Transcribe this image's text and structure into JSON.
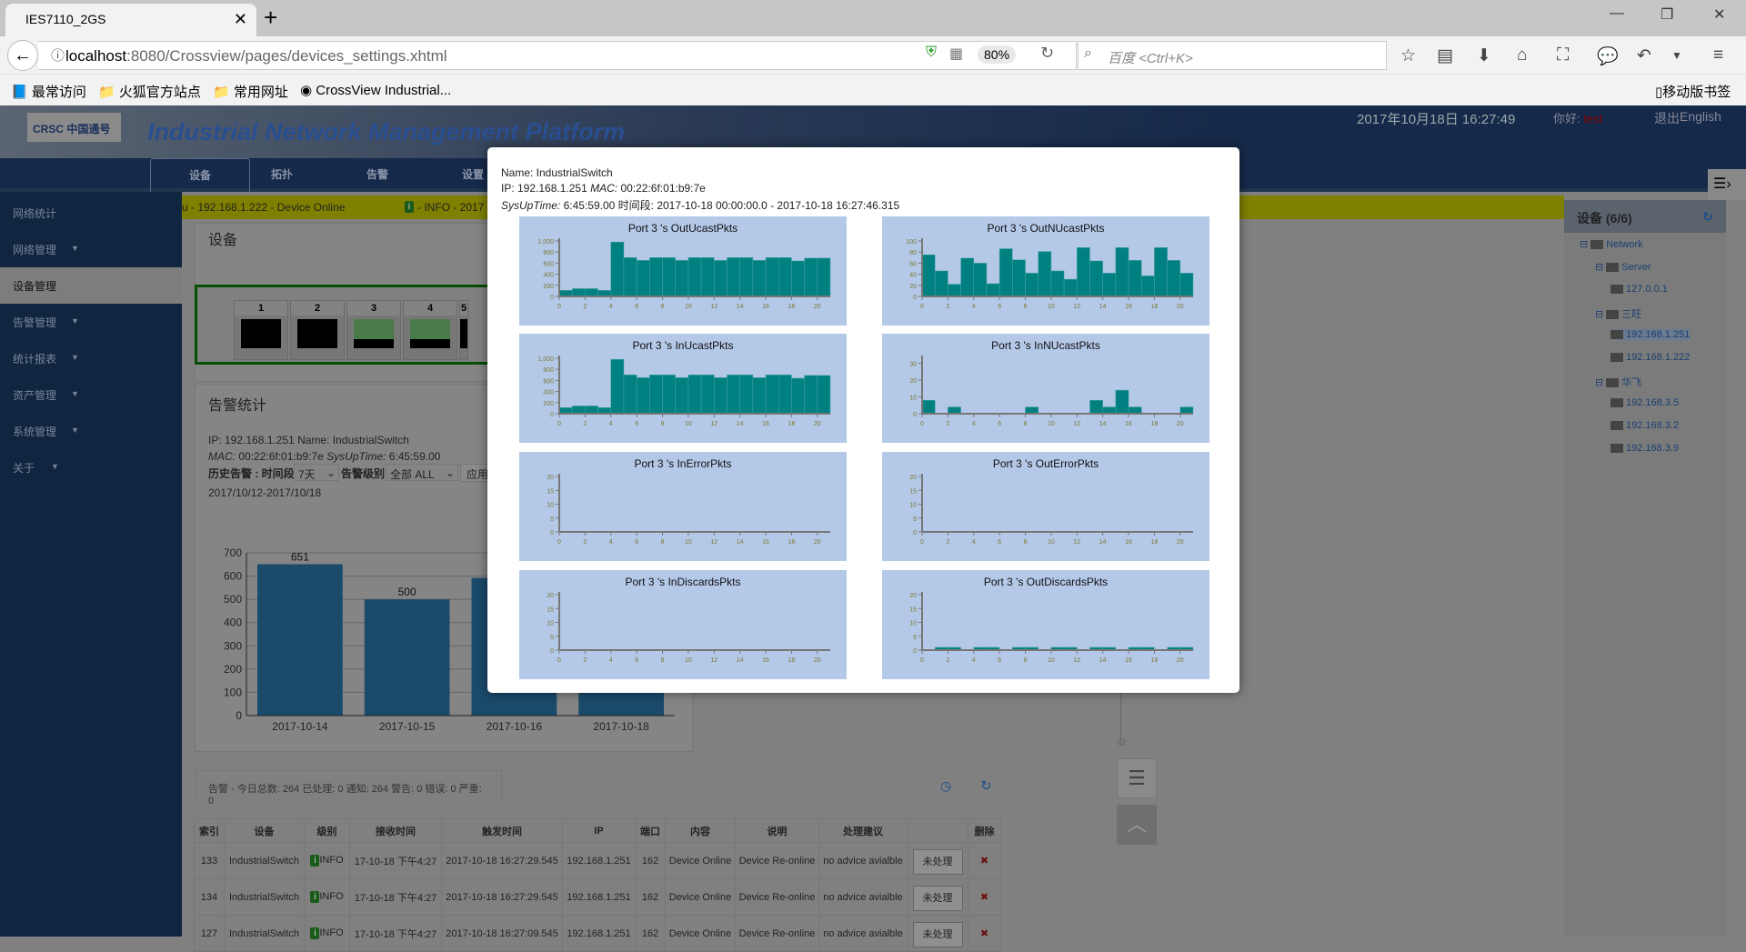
{
  "browser": {
    "tab_title": "IES7110_2GS",
    "url_host": "localhost",
    "url_path": ":8080/Crossview/pages/devices_settings.xhtml",
    "zoom": "80%",
    "search_placeholder": "百度 <Ctrl+K>",
    "bookmarks": [
      "最常访问",
      "火狐官方站点",
      "常用网址",
      "CrossView Industrial..."
    ],
    "mobile_bookmarks": "移动版书签"
  },
  "header": {
    "logo": "CRSC 中国通号",
    "title": "Industrial Network Management Platform",
    "datetime": "2017年10月18日 16:27:49",
    "hello": "你好:",
    "user": "test",
    "logout": "退出",
    "lang": "English"
  },
  "nav": [
    "设备",
    "拓扑",
    "告警",
    "设置"
  ],
  "sidebar": [
    {
      "label": "网络统计",
      "caret": false
    },
    {
      "label": "网络管理",
      "caret": true
    },
    {
      "label": "设备管理",
      "caret": false,
      "active": true
    },
    {
      "label": "告警管理",
      "caret": true
    },
    {
      "label": "统计报表",
      "caret": true
    },
    {
      "label": "资产管理",
      "caret": true
    },
    {
      "label": "系统管理",
      "caret": true
    },
    {
      "label": "关于",
      "caret": true
    }
  ],
  "ticker": {
    "text1": "u - 192.168.1.222 - Device Online",
    "badge": "i",
    "text2": "- INFO - 2017"
  },
  "device_panel": {
    "title": "设备",
    "ports": [
      {
        "n": "1",
        "up": false
      },
      {
        "n": "2",
        "up": false
      },
      {
        "n": "3",
        "up": true
      },
      {
        "n": "4",
        "up": true
      },
      {
        "n": "5",
        "up": false
      }
    ]
  },
  "alarm_panel": {
    "title": "告警统计",
    "line1": "IP: 192.168.1.251 Name: IndustrialSwitch",
    "mac_label": "MAC:",
    "mac": "00:22:6f:01:b9:7e",
    "uptime_label": "SysUpTime:",
    "uptime": "6:45:59.00",
    "history_label": "历史告警 : 时间段",
    "period": "7天",
    "level_label": "告警级别",
    "level": "全部 ALL",
    "apply": "应用",
    "range": "2017/10/12-2017/10/18"
  },
  "alarm_summary": "告警 - 今日总数: 264 已处理: 0 通知: 264 警告: 0 错误: 0 严重: 0",
  "table": {
    "headers": [
      "索引",
      "设备",
      "级别",
      "接收时间",
      "触发时间",
      "IP",
      "端口",
      "内容",
      "说明",
      "处理建议",
      "",
      "删除"
    ],
    "rows": [
      [
        "133",
        "IndustrialSwitch",
        "INFO",
        "17-10-18 下午4:27",
        "2017-10-18 16:27:29.545",
        "192.168.1.251",
        "162",
        "Device Online",
        "Device Re-online",
        "no advice avialble",
        "未处理"
      ],
      [
        "134",
        "IndustrialSwitch",
        "INFO",
        "17-10-18 下午4:27",
        "2017-10-18 16:27:29.545",
        "192.168.1.251",
        "162",
        "Device Online",
        "Device Re-online",
        "no advice avialble",
        "未处理"
      ],
      [
        "127",
        "IndustrialSwitch",
        "INFO",
        "17-10-18 下午4:27",
        "2017-10-18 16:27:09.545",
        "192.168.1.251",
        "162",
        "Device Online",
        "Device Re-online",
        "no advice avialble",
        "未处理"
      ]
    ]
  },
  "right_panel": {
    "title": "设备 (6/6)",
    "tree": [
      {
        "label": "Network",
        "level": 0
      },
      {
        "label": "Server",
        "level": 1
      },
      {
        "label": "127.0.0.1",
        "level": 2
      },
      {
        "label": "三旺",
        "level": 1
      },
      {
        "label": "192.168.1.251",
        "level": 2,
        "selected": true
      },
      {
        "label": "192.168.1.222",
        "level": 2
      },
      {
        "label": "华飞",
        "level": 1
      },
      {
        "label": "192.168.3.5",
        "level": 2
      },
      {
        "label": "192.168.3.2",
        "level": 2
      },
      {
        "label": "192.168.3.9",
        "level": 2
      }
    ]
  },
  "modal": {
    "name": "Name: IndustrialSwitch",
    "ip_line": "IP: 192.168.1.251",
    "mac_label": "MAC:",
    "mac": "00:22:6f:01:b9:7e",
    "uptime_label": "SysUpTime:",
    "uptime_line": "6:45:59.00 时间段: 2017-10-18 00:00:00.0 - 2017-10-18 16:27:46.315"
  },
  "colors": {
    "bar": "#008080",
    "chart_bg": "#b4c8e8",
    "bg_bar": "#1b4a6b"
  },
  "chart_data": [
    {
      "type": "bar",
      "title": "Port 3 's OutUcastPkts",
      "xlim": [
        0,
        21
      ],
      "xticks": [
        0,
        2,
        4,
        6,
        8,
        10,
        12,
        14,
        16,
        18,
        20
      ],
      "ylim": [
        0,
        1000
      ],
      "yticks": [
        0,
        200,
        400,
        600,
        800,
        1000
      ],
      "ytick_labels": [
        "0",
        "200",
        "400",
        "600",
        "800",
        "1,000"
      ],
      "values": [
        110,
        140,
        140,
        110,
        980,
        700,
        650,
        700,
        700,
        650,
        700,
        700,
        650,
        700,
        700,
        650,
        700,
        700,
        640,
        690,
        690
      ]
    },
    {
      "type": "bar",
      "title": "Port 3 's OutNUcastPkts",
      "xlim": [
        0,
        21
      ],
      "xticks": [
        0,
        2,
        4,
        6,
        8,
        10,
        12,
        14,
        16,
        18,
        20
      ],
      "ylim": [
        0,
        100
      ],
      "yticks": [
        0,
        20,
        40,
        60,
        80,
        100
      ],
      "ytick_labels": [
        "0",
        "20",
        "40",
        "60",
        "80",
        "100"
      ],
      "values": [
        75,
        46,
        22,
        69,
        60,
        23,
        86,
        66,
        42,
        81,
        46,
        31,
        88,
        64,
        42,
        88,
        65,
        37,
        88,
        65,
        42
      ]
    },
    {
      "type": "bar",
      "title": "Port 3 's InUcastPkts",
      "xlim": [
        0,
        21
      ],
      "xticks": [
        0,
        2,
        4,
        6,
        8,
        10,
        12,
        14,
        16,
        18,
        20
      ],
      "ylim": [
        0,
        1000
      ],
      "yticks": [
        0,
        200,
        400,
        600,
        800,
        1000
      ],
      "ytick_labels": [
        "0",
        "200",
        "400",
        "600",
        "800",
        "1,000"
      ],
      "values": [
        110,
        140,
        140,
        110,
        980,
        700,
        650,
        700,
        700,
        650,
        700,
        700,
        650,
        700,
        700,
        650,
        700,
        700,
        640,
        690,
        690
      ]
    },
    {
      "type": "bar",
      "title": "Port 3 's InNUcastPkts",
      "xlim": [
        0,
        21
      ],
      "xticks": [
        0,
        2,
        4,
        6,
        8,
        10,
        12,
        14,
        16,
        18,
        20
      ],
      "ylim": [
        0,
        33
      ],
      "yticks": [
        0,
        10,
        20,
        30
      ],
      "ytick_labels": [
        "0",
        "10",
        "20",
        "30"
      ],
      "values": [
        8,
        0,
        4,
        0,
        0,
        0,
        0,
        0,
        4,
        0,
        0,
        0,
        0,
        8,
        4,
        14,
        4,
        0,
        0,
        0,
        4
      ]
    },
    {
      "type": "bar",
      "title": "Port 3 's InErrorPkts",
      "xlim": [
        0,
        21
      ],
      "xticks": [
        0,
        2,
        4,
        6,
        8,
        10,
        12,
        14,
        16,
        18,
        20
      ],
      "ylim": [
        0,
        20
      ],
      "yticks": [
        0,
        5,
        10,
        15,
        20
      ],
      "ytick_labels": [
        "0",
        "5",
        "10",
        "15",
        "20"
      ],
      "values": [
        0,
        0,
        0,
        0,
        0,
        0,
        0,
        0,
        0,
        0,
        0,
        0,
        0,
        0,
        0,
        0,
        0,
        0,
        0,
        0,
        0
      ]
    },
    {
      "type": "bar",
      "title": "Port 3 's OutErrorPkts",
      "xlim": [
        0,
        21
      ],
      "xticks": [
        0,
        2,
        4,
        6,
        8,
        10,
        12,
        14,
        16,
        18,
        20
      ],
      "ylim": [
        0,
        20
      ],
      "yticks": [
        0,
        5,
        10,
        15,
        20
      ],
      "ytick_labels": [
        "0",
        "5",
        "10",
        "15",
        "20"
      ],
      "values": [
        0,
        0,
        0,
        0,
        0,
        0,
        0,
        0,
        0,
        0,
        0,
        0,
        0,
        0,
        0,
        0,
        0,
        0,
        0,
        0,
        0
      ]
    },
    {
      "type": "bar",
      "title": "Port 3 's InDiscardsPkts",
      "xlim": [
        0,
        21
      ],
      "xticks": [
        0,
        2,
        4,
        6,
        8,
        10,
        12,
        14,
        16,
        18,
        20
      ],
      "ylim": [
        0,
        20
      ],
      "yticks": [
        0,
        5,
        10,
        15,
        20
      ],
      "ytick_labels": [
        "0",
        "5",
        "10",
        "15",
        "20"
      ],
      "values": [
        0,
        0,
        0,
        0,
        0,
        0,
        0,
        0,
        0,
        0,
        0,
        0,
        0,
        0,
        0,
        0,
        0,
        0,
        0,
        0,
        0
      ]
    },
    {
      "type": "bar",
      "title": "Port 3 's OutDiscardsPkts",
      "xlim": [
        0,
        21
      ],
      "xticks": [
        0,
        2,
        4,
        6,
        8,
        10,
        12,
        14,
        16,
        18,
        20
      ],
      "ylim": [
        0,
        20
      ],
      "yticks": [
        0,
        5,
        10,
        15,
        20
      ],
      "ytick_labels": [
        "0",
        "5",
        "10",
        "15",
        "20"
      ],
      "values": [
        0,
        1,
        1,
        0,
        1,
        1,
        0,
        1,
        1,
        0,
        1,
        1,
        0,
        1,
        1,
        0,
        1,
        1,
        0,
        1,
        1
      ]
    },
    {
      "type": "bar",
      "title": "",
      "categories": [
        "2017-10-14",
        "2017-10-15",
        "2017-10-16",
        "2017-10-18"
      ],
      "values": [
        651,
        500,
        592,
        264
      ],
      "data_labels": [
        "651",
        "500",
        "",
        ""
      ],
      "ylim": [
        0,
        700
      ],
      "yticks": [
        0,
        100,
        200,
        300,
        400,
        500,
        600,
        700
      ],
      "grid": true
    }
  ]
}
